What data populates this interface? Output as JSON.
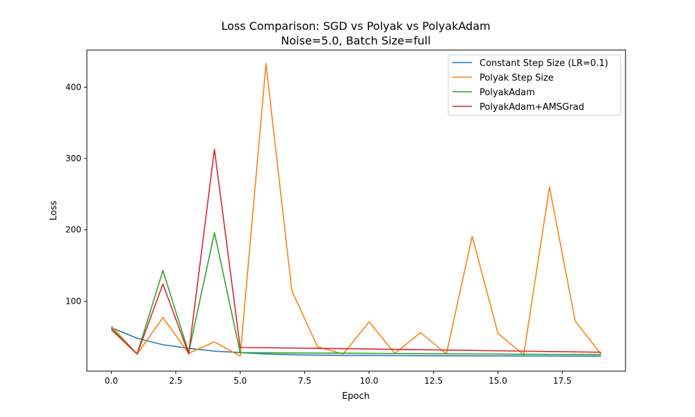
{
  "chart_data": {
    "type": "line",
    "title": "Loss Comparison: SGD vs Polyak vs PolyakAdam",
    "subtitle": "Noise=5.0, Batch Size=full",
    "xlabel": "Epoch",
    "ylabel": "Loss",
    "xlim": [
      -0.95,
      19.95
    ],
    "ylim": [
      2,
      452
    ],
    "x_ticks": [
      0.0,
      2.5,
      5.0,
      7.5,
      10.0,
      12.5,
      15.0,
      17.5
    ],
    "x_tick_labels": [
      "0.0",
      "2.5",
      "5.0",
      "7.5",
      "10.0",
      "12.5",
      "15.0",
      "17.5"
    ],
    "y_ticks": [
      100,
      200,
      300,
      400
    ],
    "y_tick_labels": [
      "100",
      "200",
      "300",
      "400"
    ],
    "grid": false,
    "legend_position": "top-right",
    "x": [
      0,
      1,
      2,
      3,
      4,
      5,
      6,
      7,
      8,
      9,
      10,
      11,
      12,
      13,
      14,
      15,
      16,
      17,
      18,
      19
    ],
    "series": [
      {
        "name": "Constant Step Size (LR=0.1)",
        "color": "#1f77b4",
        "values": [
          63,
          48,
          39,
          34,
          30,
          28,
          26,
          25,
          24.5,
          24,
          24,
          23.8,
          23.6,
          23.5,
          23.4,
          23.3,
          23.2,
          23.1,
          23.0,
          23.0
        ]
      },
      {
        "name": "Polyak Step Size",
        "color": "#ff7f0e",
        "values": [
          65,
          26,
          77,
          27,
          43,
          23,
          433,
          115,
          36,
          26,
          71,
          27,
          56,
          26,
          191,
          55,
          25,
          260,
          72,
          26
        ]
      },
      {
        "name": "PolyakAdam",
        "color": "#2ca02c",
        "values": [
          62,
          26,
          143,
          28,
          196,
          28,
          27.7,
          27.5,
          27.3,
          27.1,
          26.9,
          26.7,
          26.5,
          26.3,
          26.1,
          25.9,
          25.7,
          25.5,
          25.3,
          25.1
        ]
      },
      {
        "name": "PolyakAdam+AMSGrad",
        "color": "#d62728",
        "values": [
          60,
          26,
          124,
          26,
          313,
          35,
          34.8,
          34.4,
          34.0,
          33.5,
          33.0,
          32.5,
          32.0,
          31.5,
          31.0,
          30.5,
          30.0,
          29.5,
          29.0,
          28.5
        ]
      }
    ]
  }
}
